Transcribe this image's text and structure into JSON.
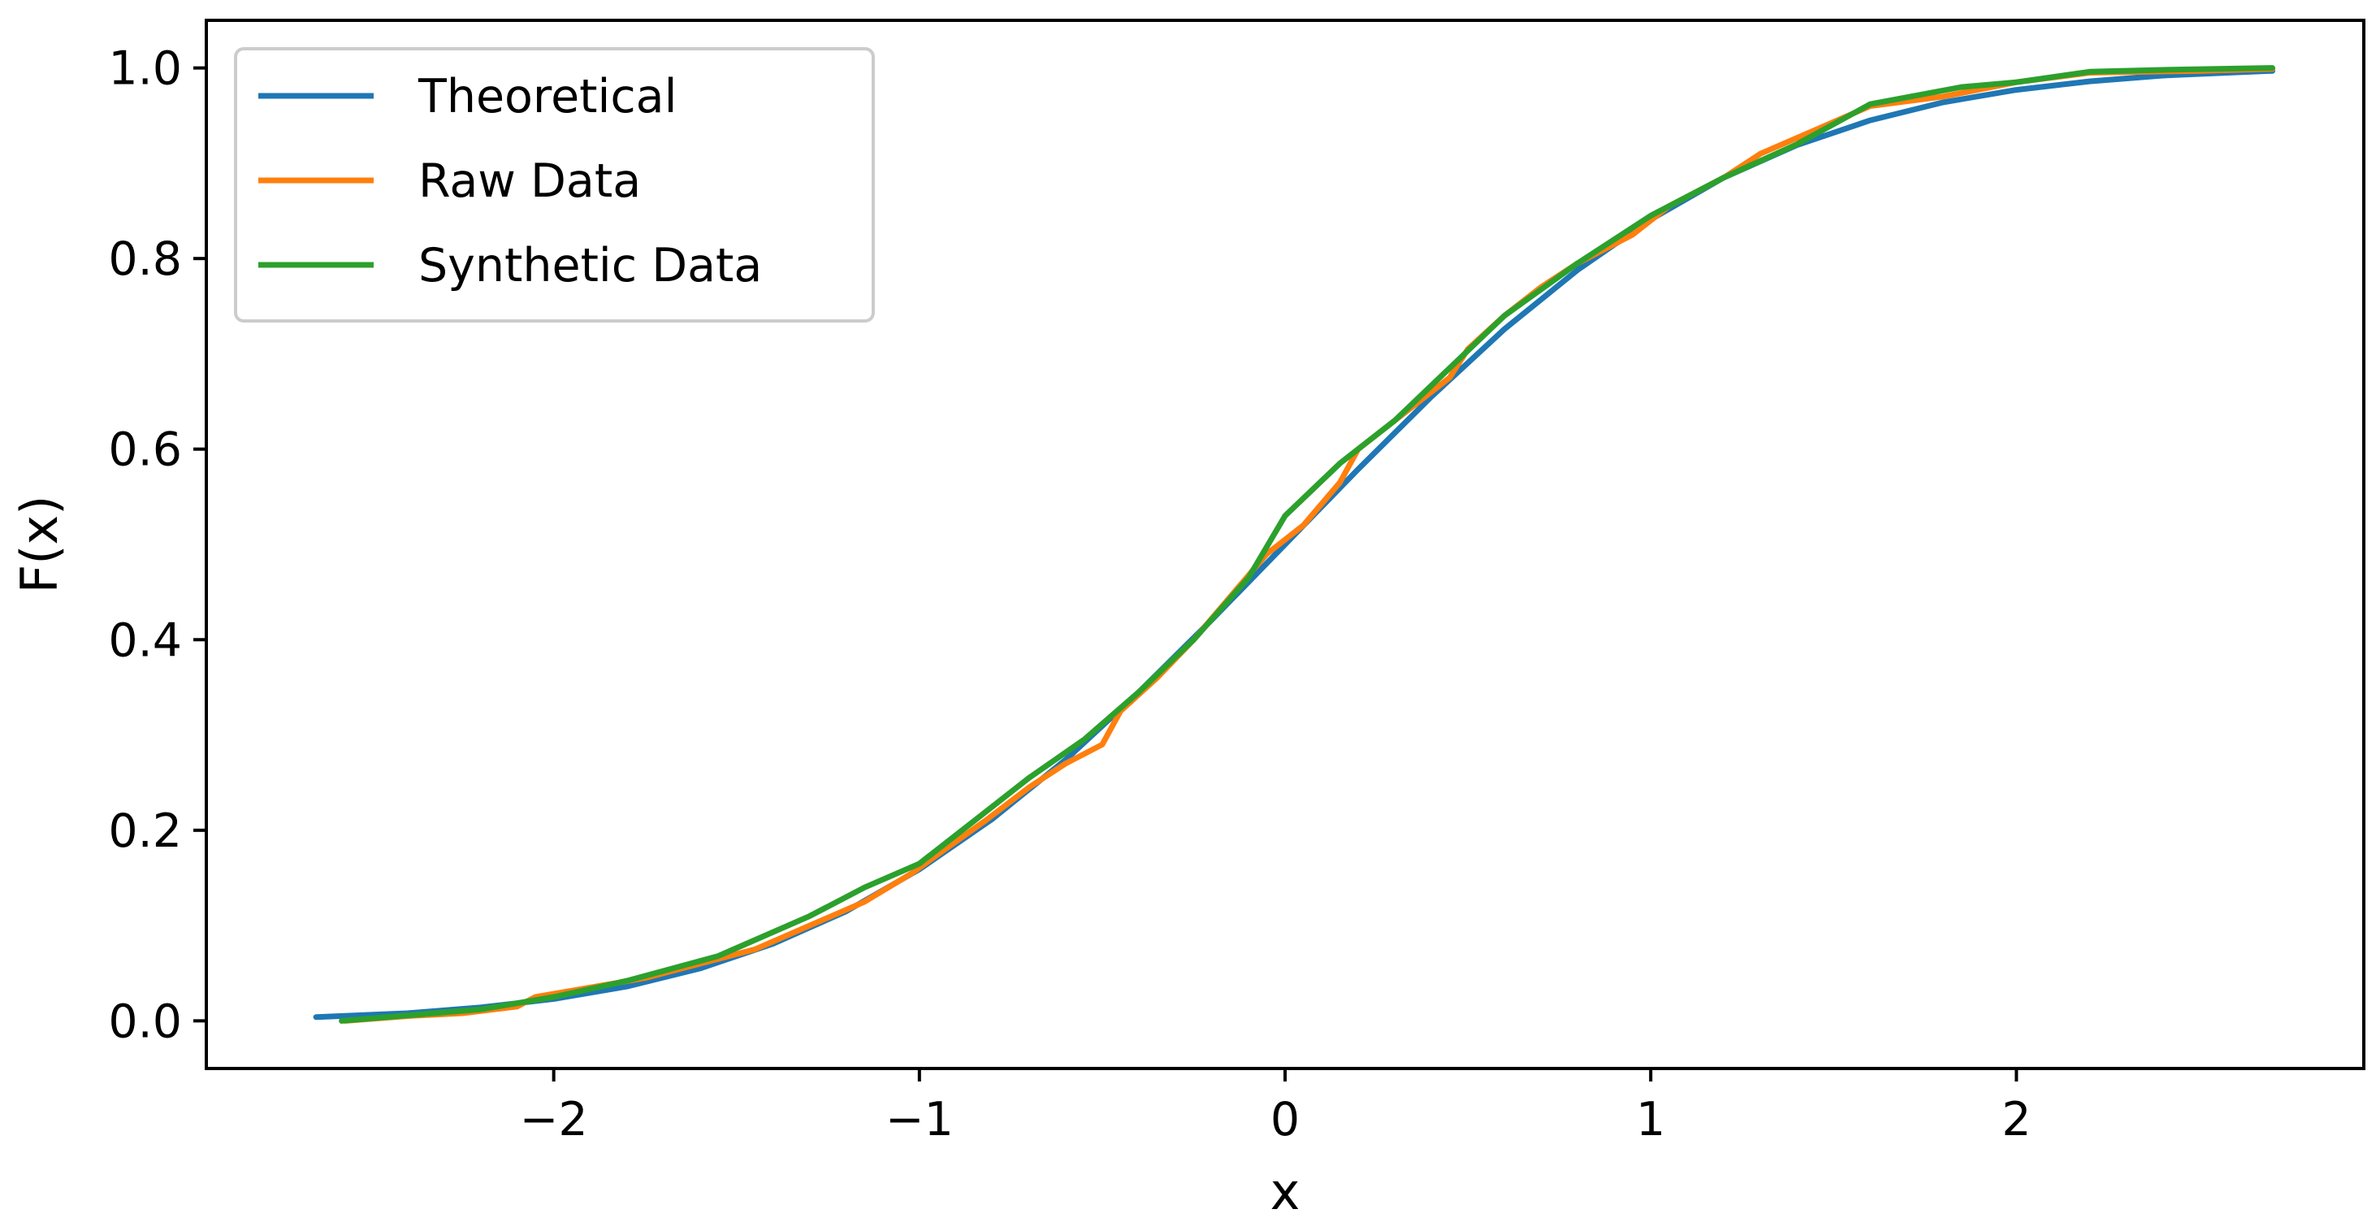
{
  "chart_data": {
    "type": "line",
    "title": "",
    "xlabel": "x",
    "ylabel": "F(x)",
    "xlim": [
      -2.95,
      2.95
    ],
    "ylim": [
      -0.05,
      1.05
    ],
    "x_ticks": [
      -2,
      -1,
      0,
      1,
      2
    ],
    "x_tick_labels": [
      "−2",
      "−1",
      "0",
      "1",
      "2"
    ],
    "y_ticks": [
      0.0,
      0.2,
      0.4,
      0.6,
      0.8,
      1.0
    ],
    "y_tick_labels": [
      "0.0",
      "0.2",
      "0.4",
      "0.6",
      "0.8",
      "1.0"
    ],
    "grid": false,
    "legend_position": "top-left",
    "series": [
      {
        "name": "Theoretical",
        "color": "#1f77b4",
        "x": [
          -2.65,
          -2.4,
          -2.2,
          -2.0,
          -1.8,
          -1.6,
          -1.4,
          -1.2,
          -1.0,
          -0.8,
          -0.6,
          -0.4,
          -0.2,
          0.0,
          0.2,
          0.4,
          0.6,
          0.8,
          1.0,
          1.2,
          1.4,
          1.6,
          1.8,
          2.0,
          2.2,
          2.4,
          2.7
        ],
        "y": [
          0.004,
          0.008,
          0.014,
          0.023,
          0.036,
          0.055,
          0.081,
          0.115,
          0.159,
          0.212,
          0.274,
          0.345,
          0.421,
          0.5,
          0.579,
          0.655,
          0.726,
          0.788,
          0.841,
          0.885,
          0.919,
          0.945,
          0.964,
          0.977,
          0.986,
          0.992,
          0.997
        ]
      },
      {
        "name": "Raw Data",
        "color": "#ff7f0e",
        "x": [
          -2.57,
          -2.4,
          -2.25,
          -2.1,
          -2.05,
          -1.9,
          -1.75,
          -1.6,
          -1.45,
          -1.3,
          -1.15,
          -1.02,
          -0.93,
          -0.82,
          -0.7,
          -0.6,
          -0.5,
          -0.45,
          -0.35,
          -0.25,
          -0.15,
          -0.05,
          0.05,
          0.15,
          0.2,
          0.3,
          0.45,
          0.5,
          0.6,
          0.7,
          0.8,
          0.95,
          1.05,
          1.2,
          1.3,
          1.45,
          1.6,
          1.8,
          2.0,
          2.2,
          2.5,
          2.7
        ],
        "y": [
          0.0,
          0.005,
          0.008,
          0.015,
          0.025,
          0.035,
          0.045,
          0.06,
          0.075,
          0.1,
          0.125,
          0.155,
          0.18,
          0.21,
          0.245,
          0.27,
          0.29,
          0.325,
          0.36,
          0.4,
          0.445,
          0.49,
          0.52,
          0.565,
          0.6,
          0.63,
          0.675,
          0.705,
          0.74,
          0.77,
          0.795,
          0.825,
          0.855,
          0.885,
          0.91,
          0.935,
          0.96,
          0.97,
          0.985,
          0.995,
          0.997,
          0.999
        ]
      },
      {
        "name": "Synthetic Data",
        "color": "#2ca02c",
        "x": [
          -2.58,
          -2.2,
          -2.0,
          -1.8,
          -1.55,
          -1.3,
          -1.15,
          -1.0,
          -0.85,
          -0.7,
          -0.55,
          -0.4,
          -0.25,
          -0.1,
          0.0,
          0.15,
          0.3,
          0.45,
          0.6,
          0.8,
          1.0,
          1.2,
          1.4,
          1.6,
          1.85,
          2.0,
          2.2,
          2.4,
          2.7
        ],
        "y": [
          0.0,
          0.012,
          0.025,
          0.042,
          0.068,
          0.11,
          0.14,
          0.165,
          0.21,
          0.255,
          0.295,
          0.345,
          0.4,
          0.465,
          0.53,
          0.585,
          0.63,
          0.685,
          0.74,
          0.795,
          0.845,
          0.885,
          0.92,
          0.962,
          0.98,
          0.985,
          0.996,
          0.998,
          1.0
        ]
      }
    ]
  }
}
